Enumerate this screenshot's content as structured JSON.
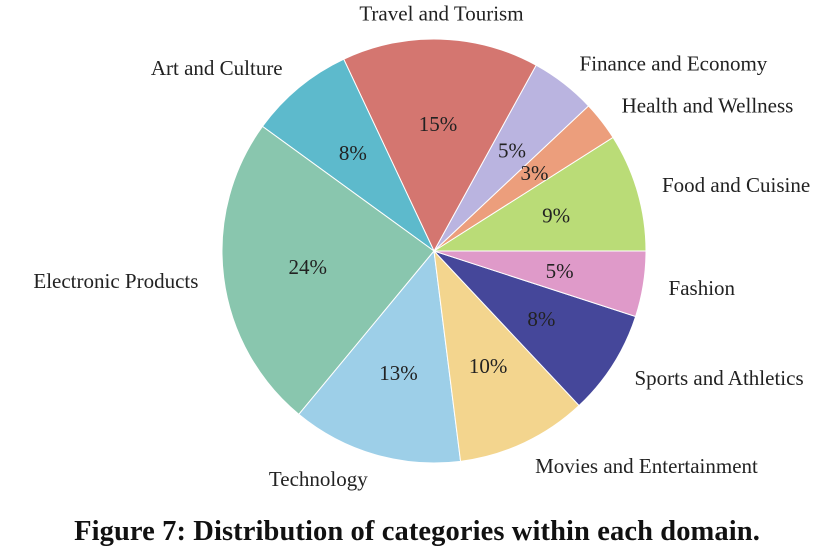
{
  "caption": "Figure 7: Distribution of categories within each domain.",
  "chart_data": {
    "type": "pie",
    "title": "",
    "start_angle_deg": 0,
    "direction": "counterclockwise",
    "slices": [
      {
        "label": "Food and Cuisine",
        "value": 9,
        "pct_label": "9%",
        "color": "#badc77"
      },
      {
        "label": "Health and Wellness",
        "value": 3,
        "pct_label": "3%",
        "color": "#ec9e7c"
      },
      {
        "label": "Finance and Economy",
        "value": 5,
        "pct_label": "5%",
        "color": "#bab4e0"
      },
      {
        "label": "Travel and Tourism",
        "value": 15,
        "pct_label": "15%",
        "color": "#d47670"
      },
      {
        "label": "Art and Culture",
        "value": 8,
        "pct_label": "8%",
        "color": "#5dbacc"
      },
      {
        "label": "Electronic Products",
        "value": 24,
        "pct_label": "24%",
        "color": "#89c6ae"
      },
      {
        "label": "Technology",
        "value": 13,
        "pct_label": "13%",
        "color": "#9dcfe8"
      },
      {
        "label": "Movies and Entertainment",
        "value": 10,
        "pct_label": "10%",
        "color": "#f3d58e"
      },
      {
        "label": "Sports and Athletics",
        "value": 8,
        "pct_label": "8%",
        "color": "#45479a"
      },
      {
        "label": "Fashion",
        "value": 5,
        "pct_label": "5%",
        "color": "#df9ac9"
      }
    ]
  }
}
